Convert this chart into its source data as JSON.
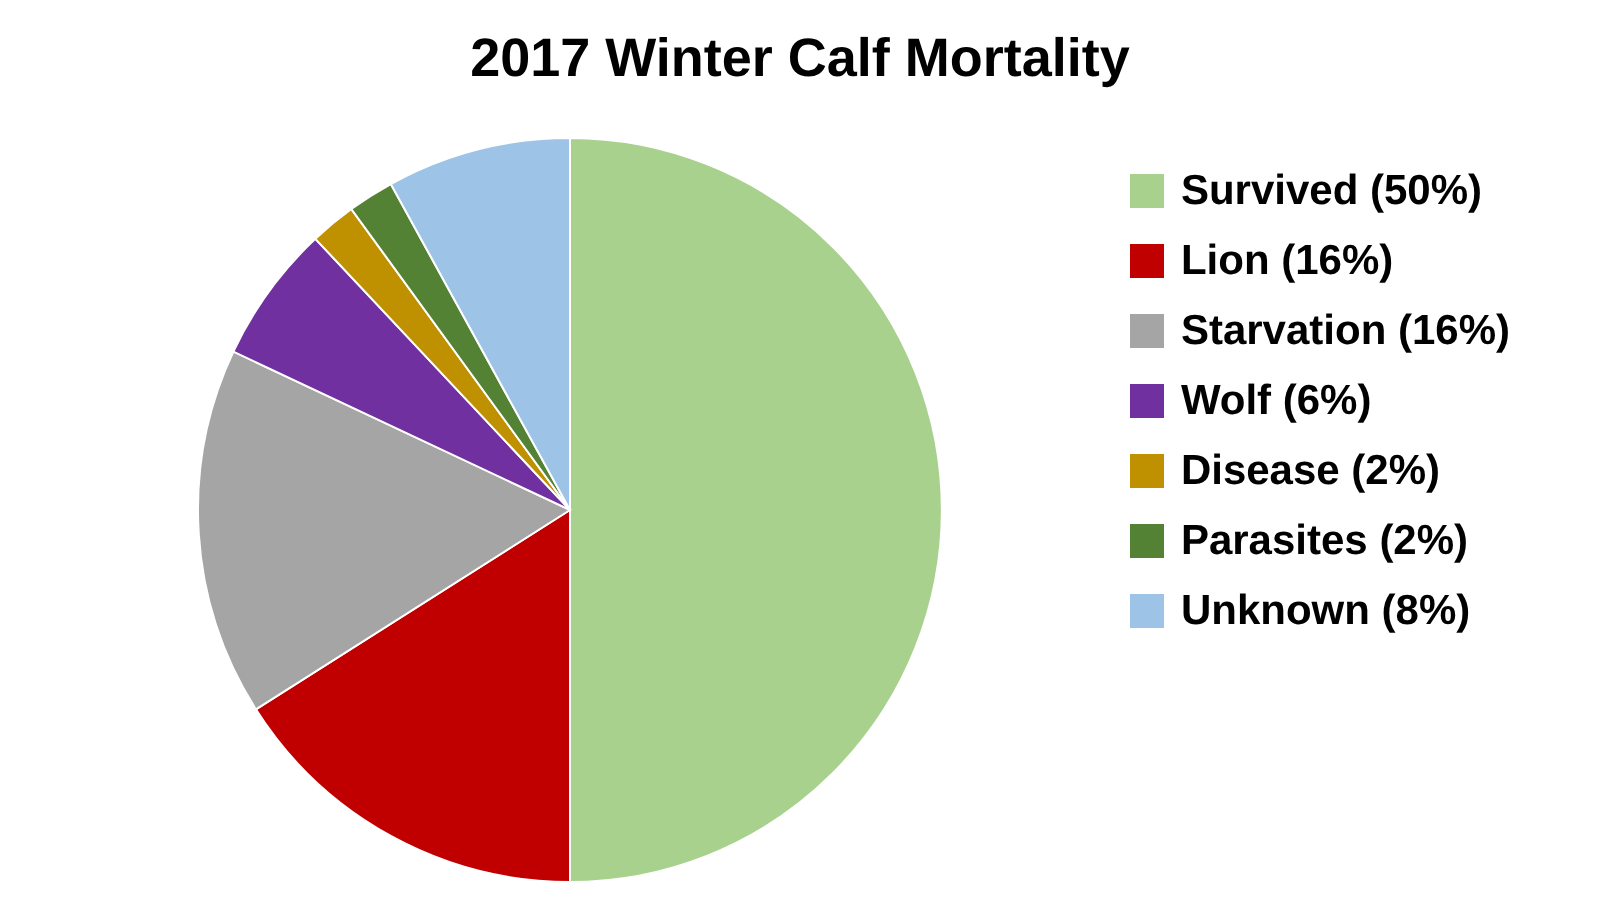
{
  "chart_data": {
    "type": "pie",
    "title": "2017 Winter Calf Mortality",
    "categories": [
      "Survived (50%)",
      "Lion (16%)",
      "Starvation (16%)",
      "Wolf (6%)",
      "Disease (2%)",
      "Parasites (2%)",
      "Unknown (8%)"
    ],
    "values": [
      50,
      16,
      16,
      6,
      2,
      2,
      8
    ],
    "colors": [
      "#a9d18e",
      "#c00000",
      "#a5a5a5",
      "#7030a0",
      "#bf9000",
      "#548235",
      "#9dc3e6"
    ],
    "legend": "right"
  }
}
